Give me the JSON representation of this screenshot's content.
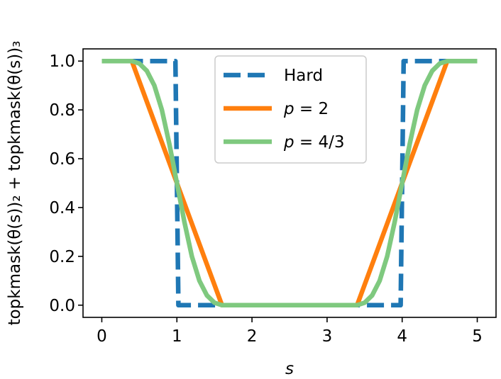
{
  "chart_data": {
    "type": "line",
    "xlabel": "s",
    "ylabel": "topkmask(θ(s))₂ + topkmask(θ(s))₃",
    "xlim": [
      -0.25,
      5.25
    ],
    "ylim": [
      -0.05,
      1.05
    ],
    "x_ticks": [
      "0",
      "1",
      "2",
      "3",
      "4",
      "5"
    ],
    "y_ticks": [
      "0.0",
      "0.2",
      "0.4",
      "0.6",
      "0.8",
      "1.0"
    ],
    "legend_position": "upper-center",
    "series": [
      {
        "name": "Hard",
        "color": "#1f77b4",
        "style": "dashed",
        "x": [
          0,
          0.98,
          1.0,
          1.02,
          3.98,
          4.0,
          4.02,
          5
        ],
        "y": [
          1,
          1,
          0.5,
          0,
          0,
          0.5,
          1,
          1
        ]
      },
      {
        "name": "p = 2",
        "color": "#ff7f0e",
        "style": "solid",
        "x": [
          0,
          0.4,
          1.0,
          1.6,
          3.4,
          4.0,
          4.6,
          5
        ],
        "y": [
          1,
          1,
          0.5,
          0,
          0,
          0.5,
          1,
          1
        ]
      },
      {
        "name": "p = 4/3",
        "color": "#7fc97f",
        "style": "solid",
        "x": [
          0,
          0.4,
          0.5,
          0.6,
          0.7,
          0.8,
          0.9,
          1.0,
          1.1,
          1.2,
          1.3,
          1.4,
          1.5,
          1.6,
          3.4,
          3.5,
          3.6,
          3.7,
          3.8,
          3.9,
          4.0,
          4.1,
          4.2,
          4.3,
          4.4,
          4.5,
          4.6,
          5
        ],
        "y": [
          1,
          1,
          0.99,
          0.96,
          0.9,
          0.8,
          0.66,
          0.5,
          0.34,
          0.2,
          0.1,
          0.04,
          0.01,
          0,
          0,
          0.01,
          0.04,
          0.1,
          0.2,
          0.34,
          0.5,
          0.66,
          0.8,
          0.9,
          0.96,
          0.99,
          1,
          1
        ]
      }
    ],
    "legend": [
      {
        "label": "Hard",
        "math": false
      },
      {
        "label": "p",
        "suffix": " = 2",
        "math": true
      },
      {
        "label": "p",
        "suffix": " = 4/3",
        "math": true
      }
    ]
  }
}
